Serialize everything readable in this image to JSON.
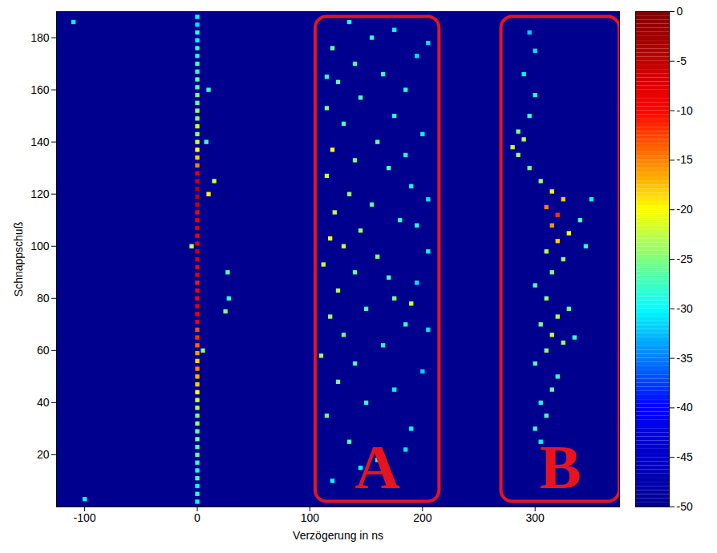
{
  "chart_data": {
    "type": "heatmap",
    "xlabel": "Verzögerung in ns",
    "ylabel": "Schnappschuß",
    "xlim": [
      -125,
      375
    ],
    "xticks": [
      -100,
      0,
      100,
      200,
      300
    ],
    "ylim": [
      0,
      190
    ],
    "yticks": [
      20,
      40,
      60,
      80,
      100,
      120,
      140,
      160,
      180
    ],
    "colorbar": {
      "lim": [
        -50,
        0
      ],
      "ticks": [
        0,
        -5,
        -10,
        -15,
        -20,
        -25,
        -30,
        -35,
        -40,
        -45,
        -50
      ]
    },
    "regions": [
      {
        "label": "A",
        "delay": [
          105,
          215
        ],
        "snapshot": [
          2,
          188
        ],
        "color": "#e8141c"
      },
      {
        "label": "B",
        "delay": [
          270,
          375
        ],
        "snapshot": [
          2,
          188
        ],
        "color": "#e8141c"
      }
    ],
    "cells": [
      [
        2,
        0,
        -30
      ],
      [
        5,
        0,
        -28
      ],
      [
        8,
        0,
        -30
      ],
      [
        11,
        0,
        -27
      ],
      [
        14,
        0,
        -29
      ],
      [
        17,
        0,
        -28
      ],
      [
        20,
        0,
        -26
      ],
      [
        23,
        0,
        -27
      ],
      [
        26,
        0,
        -25
      ],
      [
        29,
        0,
        -26
      ],
      [
        32,
        0,
        -24
      ],
      [
        35,
        0,
        -25
      ],
      [
        38,
        0,
        -23
      ],
      [
        41,
        0,
        -22
      ],
      [
        44,
        0,
        -20
      ],
      [
        47,
        0,
        -18
      ],
      [
        50,
        0,
        -17
      ],
      [
        53,
        0,
        -15
      ],
      [
        56,
        0,
        -18
      ],
      [
        59,
        0,
        -16
      ],
      [
        62,
        0,
        -14
      ],
      [
        65,
        0,
        -12
      ],
      [
        68,
        0,
        -13
      ],
      [
        71,
        0,
        -10
      ],
      [
        74,
        0,
        -9
      ],
      [
        77,
        0,
        -8
      ],
      [
        80,
        0,
        -10
      ],
      [
        83,
        0,
        -9
      ],
      [
        86,
        0,
        -11
      ],
      [
        89,
        0,
        -8
      ],
      [
        92,
        0,
        -10
      ],
      [
        95,
        0,
        -7
      ],
      [
        98,
        0,
        -6
      ],
      [
        101,
        0,
        -8
      ],
      [
        104,
        0,
        -9
      ],
      [
        107,
        0,
        -7
      ],
      [
        110,
        0,
        -8
      ],
      [
        113,
        0,
        -10
      ],
      [
        116,
        0,
        -6
      ],
      [
        119,
        0,
        -5
      ],
      [
        122,
        0,
        -4
      ],
      [
        125,
        0,
        -6
      ],
      [
        128,
        0,
        -8
      ],
      [
        131,
        0,
        -15
      ],
      [
        134,
        0,
        -18
      ],
      [
        137,
        0,
        -20
      ],
      [
        140,
        0,
        -22
      ],
      [
        143,
        0,
        -24
      ],
      [
        146,
        0,
        -22
      ],
      [
        149,
        0,
        -25
      ],
      [
        152,
        0,
        -24
      ],
      [
        155,
        0,
        -26
      ],
      [
        158,
        0,
        -25
      ],
      [
        161,
        0,
        -27
      ],
      [
        164,
        0,
        -26
      ],
      [
        167,
        0,
        -28
      ],
      [
        170,
        0,
        -27
      ],
      [
        173,
        0,
        -29
      ],
      [
        176,
        0,
        -28
      ],
      [
        179,
        0,
        -30
      ],
      [
        182,
        0,
        -29
      ],
      [
        185,
        0,
        -31
      ],
      [
        188,
        0,
        -30
      ],
      [
        75,
        25,
        -25
      ],
      [
        80,
        28,
        -28
      ],
      [
        90,
        27,
        -27
      ],
      [
        120,
        10,
        -20
      ],
      [
        125,
        15,
        -22
      ],
      [
        100,
        -5,
        -22
      ],
      [
        60,
        5,
        -25
      ],
      [
        140,
        8,
        -28
      ],
      [
        160,
        10,
        -28
      ],
      [
        186,
        -110,
        -30
      ],
      [
        3,
        -100,
        -30
      ],
      [
        10,
        120,
        -30
      ],
      [
        18,
        160,
        -28
      ],
      [
        25,
        135,
        -27
      ],
      [
        30,
        190,
        -30
      ],
      [
        35,
        115,
        -26
      ],
      [
        40,
        150,
        -28
      ],
      [
        45,
        175,
        -30
      ],
      [
        48,
        125,
        -25
      ],
      [
        52,
        200,
        -32
      ],
      [
        55,
        140,
        -27
      ],
      [
        58,
        110,
        -24
      ],
      [
        62,
        165,
        -29
      ],
      [
        66,
        130,
        -26
      ],
      [
        70,
        185,
        -28
      ],
      [
        73,
        118,
        -24
      ],
      [
        76,
        150,
        -27
      ],
      [
        80,
        175,
        -25
      ],
      [
        83,
        125,
        -23
      ],
      [
        86,
        195,
        -31
      ],
      [
        90,
        140,
        -26
      ],
      [
        93,
        112,
        -22
      ],
      [
        96,
        160,
        -25
      ],
      [
        100,
        130,
        -22
      ],
      [
        103,
        118,
        -20
      ],
      [
        106,
        145,
        -24
      ],
      [
        110,
        180,
        -28
      ],
      [
        113,
        122,
        -23
      ],
      [
        116,
        155,
        -26
      ],
      [
        120,
        135,
        -24
      ],
      [
        123,
        190,
        -29
      ],
      [
        127,
        115,
        -22
      ],
      [
        130,
        170,
        -27
      ],
      [
        133,
        140,
        -25
      ],
      [
        137,
        120,
        -20
      ],
      [
        140,
        160,
        -26
      ],
      [
        143,
        200,
        -30
      ],
      [
        147,
        130,
        -27
      ],
      [
        150,
        175,
        -28
      ],
      [
        153,
        115,
        -25
      ],
      [
        157,
        145,
        -27
      ],
      [
        160,
        185,
        -29
      ],
      [
        163,
        125,
        -26
      ],
      [
        166,
        165,
        -28
      ],
      [
        170,
        140,
        -27
      ],
      [
        173,
        195,
        -31
      ],
      [
        176,
        120,
        -26
      ],
      [
        180,
        155,
        -28
      ],
      [
        183,
        175,
        -30
      ],
      [
        186,
        135,
        -29
      ],
      [
        15,
        145,
        -30
      ],
      [
        22,
        185,
        -31
      ],
      [
        68,
        205,
        -31
      ],
      [
        78,
        190,
        -22
      ],
      [
        88,
        170,
        -27
      ],
      [
        98,
        205,
        -30
      ],
      [
        108,
        195,
        -29
      ],
      [
        118,
        205,
        -31
      ],
      [
        135,
        185,
        -29
      ],
      [
        165,
        115,
        -28
      ],
      [
        178,
        205,
        -31
      ],
      [
        25,
        305,
        -30
      ],
      [
        30,
        300,
        -28
      ],
      [
        35,
        310,
        -27
      ],
      [
        40,
        305,
        -29
      ],
      [
        45,
        315,
        -26
      ],
      [
        50,
        320,
        -28
      ],
      [
        55,
        300,
        -27
      ],
      [
        60,
        310,
        -25
      ],
      [
        63,
        325,
        -24
      ],
      [
        66,
        315,
        -22
      ],
      [
        70,
        305,
        -25
      ],
      [
        73,
        320,
        -23
      ],
      [
        76,
        330,
        -26
      ],
      [
        80,
        310,
        -24
      ],
      [
        85,
        300,
        -27
      ],
      [
        90,
        315,
        -25
      ],
      [
        95,
        325,
        -24
      ],
      [
        98,
        310,
        -23
      ],
      [
        102,
        320,
        -18
      ],
      [
        105,
        330,
        -20
      ],
      [
        108,
        315,
        -16
      ],
      [
        112,
        320,
        -12
      ],
      [
        115,
        310,
        -15
      ],
      [
        118,
        325,
        -18
      ],
      [
        121,
        315,
        -20
      ],
      [
        125,
        305,
        -24
      ],
      [
        130,
        295,
        -26
      ],
      [
        135,
        285,
        -24
      ],
      [
        138,
        280,
        -22
      ],
      [
        141,
        290,
        -23
      ],
      [
        144,
        285,
        -25
      ],
      [
        150,
        295,
        -28
      ],
      [
        158,
        300,
        -29
      ],
      [
        166,
        290,
        -30
      ],
      [
        175,
        300,
        -31
      ],
      [
        182,
        295,
        -32
      ],
      [
        110,
        340,
        -27
      ],
      [
        100,
        345,
        -28
      ],
      [
        65,
        335,
        -28
      ],
      [
        118,
        350,
        -30
      ]
    ]
  }
}
